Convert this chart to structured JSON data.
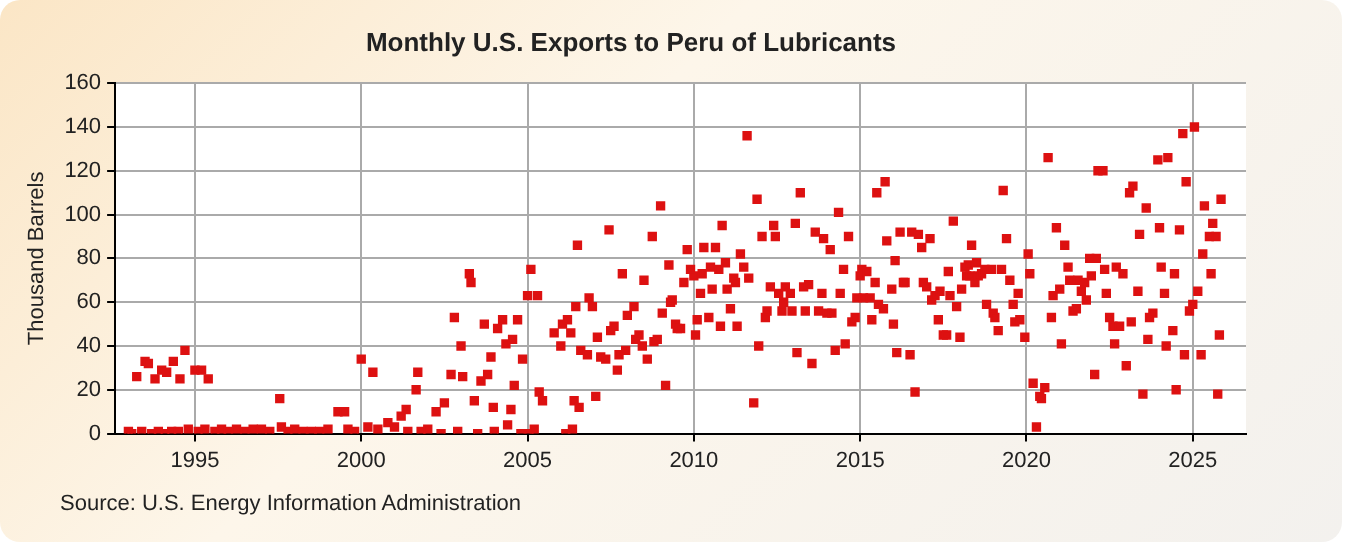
{
  "chart_data": {
    "type": "scatter",
    "title": "Monthly U.S. Exports to Peru of Lubricants",
    "ylabel": "Thousand Barrels",
    "annotations": [
      "Source: U.S. Energy Information Administration"
    ],
    "x": [
      1993.0,
      1993.1,
      1993.25,
      1993.4,
      1993.5,
      1993.6,
      1993.7,
      1993.8,
      1993.9,
      1994.0,
      1994.1,
      1994.15,
      1994.3,
      1994.35,
      1994.5,
      1994.55,
      1994.7,
      1994.8,
      1995.0,
      1995.1,
      1995.2,
      1995.3,
      1995.4,
      1995.6,
      1995.8,
      1996.0,
      1996.25,
      1996.5,
      1996.75,
      1997.0,
      1997.25,
      1997.55,
      1997.6,
      1997.8,
      1998.0,
      1998.25,
      1998.5,
      1998.75,
      1999.0,
      1999.3,
      1999.5,
      1999.6,
      1999.8,
      2000.0,
      2000.2,
      2000.35,
      2000.5,
      2000.8,
      2001.0,
      2001.2,
      2001.35,
      2001.4,
      2001.65,
      2001.7,
      2001.8,
      2002.0,
      2002.25,
      2002.4,
      2002.5,
      2002.7,
      2002.8,
      2002.9,
      2003.0,
      2003.05,
      2003.25,
      2003.3,
      2003.4,
      2003.5,
      2003.6,
      2003.7,
      2003.8,
      2003.9,
      2003.97,
      2004.0,
      2004.1,
      2004.25,
      2004.35,
      2004.4,
      2004.5,
      2004.55,
      2004.6,
      2004.7,
      2004.8,
      2004.85,
      2005.0,
      2005.05,
      2005.1,
      2005.2,
      2005.3,
      2005.35,
      2005.45,
      2005.8,
      2006.0,
      2006.05,
      2006.15,
      2006.2,
      2006.3,
      2006.35,
      2006.4,
      2006.45,
      2006.5,
      2006.55,
      2006.6,
      2006.8,
      2006.85,
      2006.95,
      2007.05,
      2007.1,
      2007.2,
      2007.35,
      2007.45,
      2007.5,
      2007.6,
      2007.7,
      2007.75,
      2007.85,
      2007.95,
      2008.0,
      2008.2,
      2008.25,
      2008.35,
      2008.45,
      2008.5,
      2008.6,
      2008.75,
      2008.8,
      2008.9,
      2009.0,
      2009.05,
      2009.15,
      2009.25,
      2009.3,
      2009.35,
      2009.45,
      2009.5,
      2009.6,
      2009.7,
      2009.8,
      2009.9,
      2010.0,
      2010.05,
      2010.1,
      2010.2,
      2010.25,
      2010.3,
      2010.45,
      2010.5,
      2010.55,
      2010.65,
      2010.75,
      2010.8,
      2010.85,
      2010.95,
      2011.0,
      2011.1,
      2011.2,
      2011.25,
      2011.3,
      2011.4,
      2011.5,
      2011.6,
      2011.65,
      2011.8,
      2011.9,
      2011.95,
      2012.05,
      2012.15,
      2012.2,
      2012.3,
      2012.4,
      2012.45,
      2012.55,
      2012.65,
      2012.7,
      2012.75,
      2012.9,
      2012.95,
      2013.05,
      2013.1,
      2013.2,
      2013.3,
      2013.35,
      2013.45,
      2013.55,
      2013.65,
      2013.75,
      2013.85,
      2013.9,
      2014.0,
      2014.1,
      2014.15,
      2014.25,
      2014.35,
      2014.4,
      2014.5,
      2014.55,
      2014.65,
      2014.75,
      2014.85,
      2014.9,
      2015.0,
      2015.05,
      2015.1,
      2015.2,
      2015.3,
      2015.35,
      2015.45,
      2015.5,
      2015.55,
      2015.7,
      2015.75,
      2015.8,
      2015.95,
      2016.0,
      2016.05,
      2016.1,
      2016.2,
      2016.3,
      2016.35,
      2016.5,
      2016.55,
      2016.65,
      2016.75,
      2016.85,
      2016.9,
      2017.0,
      2017.1,
      2017.15,
      2017.25,
      2017.35,
      2017.4,
      2017.5,
      2017.6,
      2017.65,
      2017.7,
      2017.8,
      2017.9,
      2018.0,
      2018.05,
      2018.15,
      2018.2,
      2018.25,
      2018.3,
      2018.35,
      2018.45,
      2018.5,
      2018.55,
      2018.65,
      2018.75,
      2018.8,
      2018.95,
      2019.0,
      2019.05,
      2019.15,
      2019.25,
      2019.3,
      2019.4,
      2019.5,
      2019.6,
      2019.65,
      2019.75,
      2019.8,
      2019.95,
      2020.05,
      2020.1,
      2020.2,
      2020.3,
      2020.4,
      2020.45,
      2020.55,
      2020.65,
      2020.75,
      2020.8,
      2020.9,
      2021.0,
      2021.05,
      2021.15,
      2021.25,
      2021.3,
      2021.4,
      2021.5,
      2021.55,
      2021.65,
      2021.75,
      2021.8,
      2021.9,
      2021.95,
      2022.05,
      2022.1,
      2022.15,
      2022.3,
      2022.35,
      2022.4,
      2022.5,
      2022.6,
      2022.65,
      2022.7,
      2022.8,
      2022.9,
      2023.0,
      2023.1,
      2023.15,
      2023.2,
      2023.35,
      2023.4,
      2023.5,
      2023.6,
      2023.65,
      2023.7,
      2023.8,
      2023.95,
      2024.0,
      2024.05,
      2024.15,
      2024.2,
      2024.25,
      2024.4,
      2024.45,
      2024.5,
      2024.6,
      2024.7,
      2024.75,
      2024.8,
      2024.9,
      2025.0,
      2025.05,
      2025.15,
      2025.25,
      2025.3,
      2025.35,
      2025.5,
      2025.55,
      2025.6,
      2025.7,
      2025.75,
      2025.8,
      2025.85
    ],
    "values": [
      1,
      0,
      26,
      1,
      33,
      32,
      0,
      25,
      1,
      29,
      0,
      28,
      1,
      33,
      1,
      25,
      38,
      2,
      29,
      1,
      29,
      2,
      25,
      1,
      2,
      1,
      2,
      1,
      2,
      2,
      1,
      16,
      3,
      1,
      2,
      1,
      1,
      1,
      2,
      10,
      10,
      2,
      1,
      34,
      3,
      28,
      2,
      5,
      3,
      8,
      11,
      1,
      20,
      28,
      1,
      2,
      10,
      0,
      14,
      27,
      53,
      1,
      40,
      26,
      73,
      69,
      15,
      0,
      24,
      50,
      27,
      35,
      12,
      1,
      48,
      52,
      41,
      4,
      11,
      43,
      22,
      52,
      0,
      34,
      63,
      0,
      75,
      2,
      63,
      19,
      15,
      46,
      40,
      50,
      0,
      52,
      46,
      2,
      15,
      58,
      86,
      12,
      38,
      36,
      62,
      58,
      17,
      44,
      35,
      34,
      93,
      47,
      49,
      29,
      36,
      73,
      38,
      54,
      58,
      43,
      45,
      40,
      70,
      34,
      90,
      42,
      43,
      104,
      55,
      22,
      77,
      60,
      61,
      50,
      48,
      48,
      69,
      84,
      75,
      72,
      45,
      52,
      64,
      73,
      85,
      53,
      76,
      66,
      85,
      75,
      49,
      95,
      78,
      66,
      57,
      71,
      69,
      49,
      82,
      76,
      136,
      71,
      14,
      107,
      40,
      90,
      53,
      56,
      67,
      95,
      90,
      64,
      56,
      60,
      67,
      64,
      56,
      96,
      37,
      110,
      67,
      56,
      68,
      32,
      92,
      56,
      64,
      89,
      55,
      84,
      55,
      38,
      101,
      64,
      75,
      41,
      90,
      51,
      53,
      62,
      72,
      75,
      62,
      74,
      62,
      52,
      69,
      110,
      59,
      57,
      115,
      88,
      66,
      50,
      79,
      37,
      92,
      69,
      69,
      36,
      92,
      19,
      91,
      85,
      69,
      67,
      89,
      61,
      63,
      52,
      65,
      45,
      45,
      74,
      63,
      97,
      58,
      44,
      66,
      76,
      72,
      77,
      72,
      86,
      69,
      78,
      72,
      73,
      75,
      59,
      75,
      55,
      53,
      47,
      75,
      111,
      89,
      70,
      59,
      51,
      64,
      52,
      44,
      82,
      73,
      23,
      3,
      17,
      16,
      21,
      126,
      53,
      63,
      94,
      66,
      41,
      86,
      76,
      70,
      56,
      57,
      70,
      65,
      69,
      61,
      80,
      72,
      27,
      80,
      120,
      120,
      75,
      64,
      53,
      49,
      41,
      76,
      49,
      73,
      31,
      110,
      51,
      113,
      65,
      91,
      18,
      103,
      43,
      53,
      55,
      125,
      94,
      76,
      64,
      40,
      126,
      47,
      73,
      20,
      93,
      137,
      36,
      115,
      56,
      59,
      140,
      65,
      36,
      82,
      104,
      90,
      73,
      96,
      90,
      18,
      45,
      107
    ],
    "color": "#dd1111",
    "marker": "square",
    "xlim": [
      1992.6,
      2026.6
    ],
    "xticks": [
      1995,
      2000,
      2005,
      2010,
      2015,
      2020,
      2025
    ],
    "ylim": [
      0,
      160
    ],
    "yticks": [
      0,
      20,
      40,
      60,
      80,
      100,
      120,
      140,
      160
    ],
    "grid": true,
    "legend": false
  }
}
